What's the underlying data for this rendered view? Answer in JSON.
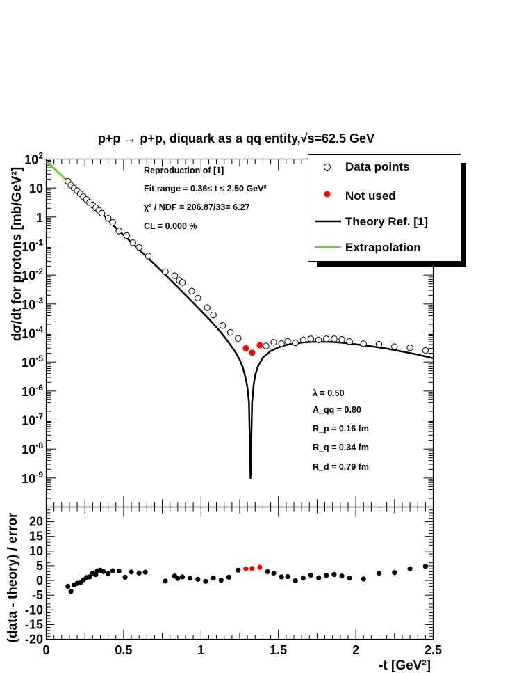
{
  "chart_data": [
    {
      "type": "scatter",
      "title": "p+p → p+p, diquark as a qq entity,√s=62.5 GeV",
      "xlabel": "-t [GeV²]",
      "ylabel": "dσ/dt for protons [mb/GeV²]",
      "yscale": "log",
      "xlim": [
        0,
        2.5
      ],
      "ylim": [
        1e-10,
        100
      ],
      "y_ticks": [
        "10^2",
        "10",
        "1",
        "10^-1",
        "10^-2",
        "10^-3",
        "10^-4",
        "10^-5",
        "10^-6",
        "10^-7",
        "10^-8",
        "10^-9"
      ],
      "legend_position": "top-right",
      "legend": {
        "data_points": "Data points",
        "not_used": "Not used",
        "theory": "Theory Ref. [1]",
        "extrapolation": "Extrapolation"
      },
      "fit_info": {
        "line1": "Reproduction of [1]",
        "line2": "Fit range = 0.36≤ t ≤ 2.50 GeV²",
        "line3": "χ² / NDF = 206.87/33= 6.27",
        "line4": "CL = 0.000 %"
      },
      "params": {
        "lambda": "λ = 0.50",
        "aqq": "A_qq = 0.80",
        "rp": "R_p = 0.16 fm",
        "rq": "R_q = 0.34 fm",
        "rd": "R_d = 0.79 fm"
      },
      "series": [
        {
          "name": "Data points",
          "points": [
            [
              0.14,
              17
            ],
            [
              0.16,
              12.5
            ],
            [
              0.18,
              10
            ],
            [
              0.2,
              8
            ],
            [
              0.22,
              6.3
            ],
            [
              0.24,
              5
            ],
            [
              0.26,
              4
            ],
            [
              0.28,
              3.2
            ],
            [
              0.3,
              2.6
            ],
            [
              0.32,
              2.1
            ],
            [
              0.34,
              1.7
            ],
            [
              0.36,
              1.35
            ],
            [
              0.4,
              0.9
            ],
            [
              0.43,
              0.65
            ],
            [
              0.47,
              0.33
            ],
            [
              0.52,
              0.23
            ],
            [
              0.56,
              0.13
            ],
            [
              0.6,
              0.09
            ],
            [
              0.66,
              0.045
            ],
            [
              0.77,
              0.013
            ],
            [
              0.83,
              0.0095
            ],
            [
              0.86,
              0.0065
            ],
            [
              0.88,
              0.0055
            ],
            [
              0.94,
              0.0028
            ],
            [
              0.98,
              0.0016
            ],
            [
              1.04,
              0.00075
            ],
            [
              1.08,
              0.00042
            ],
            [
              1.14,
              0.00018
            ],
            [
              1.19,
              0.000105
            ],
            [
              1.24,
              6.5e-05
            ],
            [
              1.42,
              3.6e-05
            ],
            [
              1.47,
              4.8e-05
            ],
            [
              1.52,
              4.3e-05
            ],
            [
              1.56,
              5.2e-05
            ],
            [
              1.61,
              4.6e-05
            ],
            [
              1.66,
              5.8e-05
            ],
            [
              1.71,
              6.3e-05
            ],
            [
              1.76,
              5.8e-05
            ],
            [
              1.81,
              6.3e-05
            ],
            [
              1.86,
              6.3e-05
            ],
            [
              1.91,
              6e-05
            ],
            [
              1.96,
              5.1e-05
            ],
            [
              2.05,
              4.3e-05
            ],
            [
              2.15,
              4.1e-05
            ],
            [
              2.25,
              3.4e-05
            ],
            [
              2.35,
              3.1e-05
            ],
            [
              2.45,
              2.5e-05
            ]
          ]
        },
        {
          "name": "Not used",
          "points": [
            [
              1.29,
              3e-05
            ],
            [
              1.33,
              2.1e-05
            ],
            [
              1.38,
              3.8e-05
            ]
          ]
        },
        {
          "name": "Theory Ref. [1]",
          "points": [
            [
              0.36,
              1.32
            ],
            [
              0.45,
              0.42
            ],
            [
              0.55,
              0.135
            ],
            [
              0.65,
              0.042
            ],
            [
              0.75,
              0.013
            ],
            [
              0.85,
              0.0038
            ],
            [
              0.95,
              0.0011
            ],
            [
              1.05,
              0.00031
            ],
            [
              1.12,
              0.00012
            ],
            [
              1.17,
              5.5e-05
            ],
            [
              1.22,
              2.3e-05
            ],
            [
              1.25,
              1.2e-05
            ],
            [
              1.27,
              6.5e-06
            ],
            [
              1.29,
              2.6e-06
            ],
            [
              1.3,
              1.3e-06
            ],
            [
              1.31,
              4e-07
            ],
            [
              1.32,
              1e-09
            ],
            [
              1.33,
              4e-07
            ],
            [
              1.34,
              1.6e-06
            ],
            [
              1.35,
              3.5e-06
            ],
            [
              1.37,
              7.5e-06
            ],
            [
              1.4,
              1.4e-05
            ],
            [
              1.45,
              2.4e-05
            ],
            [
              1.5,
              3.2e-05
            ],
            [
              1.55,
              3.9e-05
            ],
            [
              1.6,
              4.3e-05
            ],
            [
              1.65,
              4.7e-05
            ],
            [
              1.7,
              4.9e-05
            ],
            [
              1.75,
              5e-05
            ],
            [
              1.8,
              5e-05
            ],
            [
              1.85,
              4.9e-05
            ],
            [
              1.9,
              4.7e-05
            ],
            [
              1.95,
              4.4e-05
            ],
            [
              2.0,
              4.1e-05
            ],
            [
              2.1,
              3.5e-05
            ],
            [
              2.2,
              2.9e-05
            ],
            [
              2.3,
              2.3e-05
            ],
            [
              2.4,
              1.8e-05
            ],
            [
              2.5,
              1.35e-05
            ]
          ]
        },
        {
          "name": "Extrapolation",
          "points": [
            [
              0.0,
              80
            ],
            [
              0.05,
              48
            ],
            [
              0.1,
              27
            ],
            [
              0.15,
              15
            ],
            [
              0.2,
              8.3
            ],
            [
              0.25,
              4.6
            ],
            [
              0.3,
              2.6
            ],
            [
              0.36,
              1.32
            ]
          ]
        }
      ]
    },
    {
      "type": "scatter",
      "xlabel": "-t [GeV²]",
      "ylabel": "(data - theory) / error",
      "xlim": [
        0,
        2.5
      ],
      "ylim": [
        -20,
        25
      ],
      "x_ticks": [
        "0",
        "0.5",
        "1",
        "1.5",
        "2",
        "2.5"
      ],
      "y_ticks": [
        "-20",
        "-15",
        "-10",
        "-5",
        "0",
        "5",
        "10",
        "15",
        "20"
      ],
      "series": [
        {
          "name": "Data points",
          "points": [
            [
              0.14,
              -2
            ],
            [
              0.16,
              -3.7
            ],
            [
              0.18,
              -1.5
            ],
            [
              0.2,
              -1
            ],
            [
              0.22,
              -0.8
            ],
            [
              0.24,
              0.2
            ],
            [
              0.26,
              1
            ],
            [
              0.28,
              1.2
            ],
            [
              0.3,
              2.5
            ],
            [
              0.32,
              2
            ],
            [
              0.33,
              3.3
            ],
            [
              0.35,
              3.5
            ],
            [
              0.37,
              3
            ],
            [
              0.4,
              2.3
            ],
            [
              0.43,
              3.3
            ],
            [
              0.47,
              3.2
            ],
            [
              0.51,
              1.1
            ],
            [
              0.55,
              2.9
            ],
            [
              0.6,
              2.5
            ],
            [
              0.64,
              2.8
            ],
            [
              0.77,
              -0.2
            ],
            [
              0.83,
              1.5
            ],
            [
              0.85,
              0.7
            ],
            [
              0.88,
              1.2
            ],
            [
              0.93,
              0.8
            ],
            [
              0.98,
              0.4
            ],
            [
              1.03,
              -0.3
            ],
            [
              1.08,
              0.8
            ],
            [
              1.13,
              0.1
            ],
            [
              1.18,
              1.1
            ],
            [
              1.24,
              3.5
            ],
            [
              1.43,
              3
            ],
            [
              1.47,
              2.5
            ],
            [
              1.52,
              1.2
            ],
            [
              1.56,
              1.3
            ],
            [
              1.61,
              -0.1
            ],
            [
              1.66,
              0.8
            ],
            [
              1.71,
              1.8
            ],
            [
              1.76,
              0.9
            ],
            [
              1.81,
              1.7
            ],
            [
              1.86,
              2
            ],
            [
              1.91,
              1.5
            ],
            [
              1.96,
              0.8
            ],
            [
              2.05,
              0.5
            ],
            [
              2.15,
              2.5
            ],
            [
              2.25,
              2.7
            ],
            [
              2.35,
              4
            ],
            [
              2.45,
              4.8
            ]
          ]
        },
        {
          "name": "Not used",
          "points": [
            [
              1.29,
              4
            ],
            [
              1.33,
              4.1
            ],
            [
              1.38,
              4.5
            ]
          ]
        }
      ]
    }
  ]
}
